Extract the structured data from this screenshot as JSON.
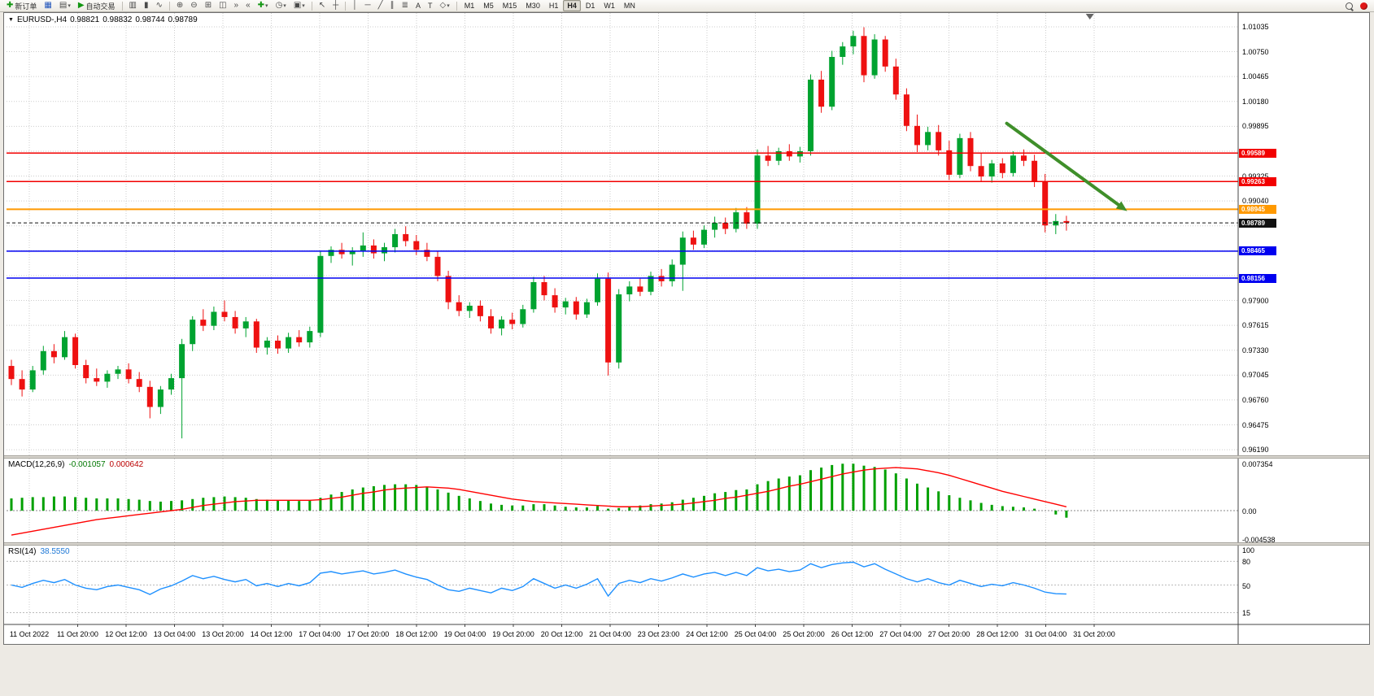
{
  "window": {
    "symbol_period": "EURUSD-,H4",
    "ohlc": {
      "open": "0.98821",
      "high": "0.98832",
      "low": "0.98744",
      "close": "0.98789"
    }
  },
  "toolbar": {
    "new_order": "新订单",
    "autotrading": "自动交易",
    "text_tool": "A",
    "label_tool": "T",
    "timeframes": [
      "M1",
      "M5",
      "M15",
      "M30",
      "H1",
      "H4",
      "D1",
      "W1",
      "MN"
    ],
    "active_timeframe": "H4"
  },
  "icons": {
    "new-order": "✚",
    "chart-window": "▦",
    "profiles": "▤",
    "autotrading-play": "▶",
    "bars-chart": "▥",
    "candles-chart": "▮",
    "line-chart": "∿",
    "zoom-in": "⊕",
    "zoom-out": "⊖",
    "tile-windows": "⊞",
    "cascade-windows": "◫",
    "auto-scroll": "»",
    "chart-shift": "«",
    "indicators-add": "✚",
    "periods": "◷",
    "templates": "▣",
    "cursor": "↖",
    "crosshair": "┼",
    "vline": "│",
    "hline": "─",
    "trendline": "╱",
    "channel": "∥",
    "fibonacci": "≣",
    "shapes": "◇",
    "dropdown": "▾",
    "menu-triangle": "▼"
  },
  "chart_data": [
    {
      "type": "candlestick",
      "title": "EURUSD-,H4",
      "symbol": "EURUSD-",
      "timeframe": "H4",
      "ohlc_display": {
        "open": "0.98821",
        "high": "0.98832",
        "low": "0.98744",
        "close": "0.98789"
      },
      "y_range": [
        0.96126,
        1.01193
      ],
      "y_axis_labels": [
        "1.01035",
        "1.00750",
        "1.00465",
        "1.00180",
        "0.99895",
        "0.99325",
        "0.99040",
        "0.97900",
        "0.97615",
        "0.97330",
        "0.97045",
        "0.96760",
        "0.96475",
        "0.96190"
      ],
      "x_labels": [
        "11 Oct 2022",
        "11 Oct 20:00",
        "12 Oct 12:00",
        "13 Oct 04:00",
        "13 Oct 20:00",
        "14 Oct 12:00",
        "17 Oct 04:00",
        "17 Oct 20:00",
        "18 Oct 12:00",
        "19 Oct 04:00",
        "19 Oct 20:00",
        "20 Oct 12:00",
        "21 Oct 04:00",
        "23 Oct 23:00",
        "24 Oct 12:00",
        "25 Oct 04:00",
        "25 Oct 20:00",
        "26 Oct 12:00",
        "27 Oct 04:00",
        "27 Oct 20:00",
        "28 Oct 12:00",
        "31 Oct 04:00",
        "31 Oct 20:00"
      ],
      "colors": {
        "up": "#00A330",
        "down": "#EE1111",
        "grid": "#CDCDCD",
        "background": "#FFFFFF"
      },
      "horizontal_lines": [
        {
          "price": "0.99589",
          "value": 0.99589,
          "color": "#F20000",
          "width": 1.5
        },
        {
          "price": "0.99263",
          "value": 0.99263,
          "color": "#F20000",
          "width": 1.5
        },
        {
          "price": "0.98945",
          "value": 0.98945,
          "color": "#FF9900",
          "width": 2
        },
        {
          "price": "0.98465",
          "value": 0.98465,
          "color": "#0000F0",
          "width": 1.5
        },
        {
          "price": "0.98156",
          "value": 0.98156,
          "color": "#0000F0",
          "width": 1.5
        }
      ],
      "bid_line": {
        "price": "0.98789",
        "value": 0.98789,
        "color": "#111111"
      },
      "trend_arrow": {
        "from_bar": 93.4,
        "from_price": 0.99929,
        "to_bar": 104.7,
        "to_price": 0.98924,
        "color": "#3F8F2A",
        "width": 4
      },
      "shift_marker_bar": 101.2,
      "candles": [
        [
          0.9715,
          0.9722,
          0.9693,
          0.97
        ],
        [
          0.97,
          0.971,
          0.968,
          0.9688
        ],
        [
          0.9688,
          0.9715,
          0.9685,
          0.971
        ],
        [
          0.971,
          0.9738,
          0.9705,
          0.9732
        ],
        [
          0.9732,
          0.974,
          0.9718,
          0.9725
        ],
        [
          0.9725,
          0.9755,
          0.9722,
          0.9748
        ],
        [
          0.9748,
          0.9752,
          0.9712,
          0.9716
        ],
        [
          0.9716,
          0.9722,
          0.9695,
          0.9701
        ],
        [
          0.9701,
          0.9712,
          0.9692,
          0.9697
        ],
        [
          0.9697,
          0.971,
          0.969,
          0.9706
        ],
        [
          0.9706,
          0.9715,
          0.97,
          0.9711
        ],
        [
          0.9711,
          0.9718,
          0.9695,
          0.97
        ],
        [
          0.97,
          0.9708,
          0.9685,
          0.9691
        ],
        [
          0.9691,
          0.9698,
          0.9655,
          0.9668
        ],
        [
          0.9668,
          0.9692,
          0.966,
          0.9688
        ],
        [
          0.9688,
          0.9706,
          0.9682,
          0.9701
        ],
        [
          0.9701,
          0.9746,
          0.9632,
          0.974
        ],
        [
          0.974,
          0.9772,
          0.9732,
          0.9768
        ],
        [
          0.9768,
          0.978,
          0.9755,
          0.9761
        ],
        [
          0.9761,
          0.9783,
          0.9756,
          0.9777
        ],
        [
          0.9777,
          0.979,
          0.9766,
          0.9771
        ],
        [
          0.9771,
          0.9778,
          0.9752,
          0.9758
        ],
        [
          0.9758,
          0.9771,
          0.9748,
          0.9766
        ],
        [
          0.9766,
          0.9769,
          0.973,
          0.9736
        ],
        [
          0.9736,
          0.9748,
          0.9728,
          0.9744
        ],
        [
          0.9744,
          0.975,
          0.9729,
          0.9735
        ],
        [
          0.9735,
          0.9753,
          0.973,
          0.9748
        ],
        [
          0.9748,
          0.9756,
          0.9737,
          0.9742
        ],
        [
          0.9742,
          0.976,
          0.9736,
          0.9755
        ],
        [
          0.9753,
          0.9846,
          0.9748,
          0.9841
        ],
        [
          0.9841,
          0.9852,
          0.9833,
          0.9848
        ],
        [
          0.9848,
          0.9856,
          0.9838,
          0.9843
        ],
        [
          0.9843,
          0.9851,
          0.983,
          0.9847
        ],
        [
          0.9847,
          0.9868,
          0.984,
          0.9853
        ],
        [
          0.9853,
          0.986,
          0.9838,
          0.9844
        ],
        [
          0.9844,
          0.9856,
          0.9835,
          0.9851
        ],
        [
          0.9851,
          0.9872,
          0.9845,
          0.9866
        ],
        [
          0.9866,
          0.9875,
          0.9852,
          0.9858
        ],
        [
          0.9858,
          0.9865,
          0.9842,
          0.9848
        ],
        [
          0.9848,
          0.9856,
          0.9835,
          0.984
        ],
        [
          0.984,
          0.9846,
          0.9812,
          0.9818
        ],
        [
          0.9818,
          0.9824,
          0.978,
          0.9788
        ],
        [
          0.9788,
          0.9796,
          0.9772,
          0.9778
        ],
        [
          0.9778,
          0.9788,
          0.977,
          0.9784
        ],
        [
          0.9784,
          0.979,
          0.9766,
          0.9772
        ],
        [
          0.9772,
          0.978,
          0.9752,
          0.9758
        ],
        [
          0.9758,
          0.9772,
          0.975,
          0.9768
        ],
        [
          0.9768,
          0.9776,
          0.9757,
          0.9763
        ],
        [
          0.9763,
          0.9785,
          0.9759,
          0.978
        ],
        [
          0.978,
          0.9817,
          0.9776,
          0.9811
        ],
        [
          0.9811,
          0.9818,
          0.979,
          0.9796
        ],
        [
          0.9796,
          0.9804,
          0.9776,
          0.9782
        ],
        [
          0.9782,
          0.9793,
          0.9774,
          0.9789
        ],
        [
          0.9789,
          0.9794,
          0.9768,
          0.9774
        ],
        [
          0.9774,
          0.9792,
          0.977,
          0.9788
        ],
        [
          0.9788,
          0.9821,
          0.9784,
          0.9815
        ],
        [
          0.9815,
          0.9822,
          0.9704,
          0.9719
        ],
        [
          0.9719,
          0.9803,
          0.9712,
          0.9797
        ],
        [
          0.9797,
          0.9812,
          0.9789,
          0.9806
        ],
        [
          0.9806,
          0.9815,
          0.9795,
          0.98
        ],
        [
          0.98,
          0.9823,
          0.9796,
          0.9818
        ],
        [
          0.9818,
          0.9826,
          0.9806,
          0.9812
        ],
        [
          0.9812,
          0.9837,
          0.9806,
          0.9831
        ],
        [
          0.9831,
          0.9869,
          0.9801,
          0.9862
        ],
        [
          0.9862,
          0.987,
          0.9848,
          0.9854
        ],
        [
          0.9854,
          0.9876,
          0.985,
          0.9871
        ],
        [
          0.9871,
          0.9886,
          0.9862,
          0.9879
        ],
        [
          0.9879,
          0.9885,
          0.9866,
          0.9872
        ],
        [
          0.9872,
          0.9896,
          0.9868,
          0.9891
        ],
        [
          0.9891,
          0.9897,
          0.9872,
          0.9878
        ],
        [
          0.9878,
          0.9963,
          0.9872,
          0.9956
        ],
        [
          0.9956,
          0.9967,
          0.9944,
          0.995
        ],
        [
          0.995,
          0.9965,
          0.9945,
          0.9961
        ],
        [
          0.9961,
          0.9969,
          0.995,
          0.9955
        ],
        [
          0.9955,
          0.9966,
          0.9948,
          0.9961
        ],
        [
          0.9961,
          1.0049,
          0.9956,
          1.0043
        ],
        [
          1.0043,
          1.0053,
          1.0005,
          1.0012
        ],
        [
          1.0012,
          1.0076,
          1.0008,
          1.0069
        ],
        [
          1.0069,
          1.0086,
          1.006,
          1.0081
        ],
        [
          1.0081,
          1.0099,
          1.0072,
          1.0093
        ],
        [
          1.0093,
          1.0103,
          1.004,
          1.0048
        ],
        [
          1.0048,
          1.0095,
          1.0044,
          1.0089
        ],
        [
          1.0089,
          1.0093,
          1.0052,
          1.0058
        ],
        [
          1.0058,
          1.0067,
          1.002,
          1.0026
        ],
        [
          1.0026,
          1.0033,
          0.9984,
          0.999
        ],
        [
          0.999,
          1.0003,
          0.996,
          0.9968
        ],
        [
          0.9968,
          0.9989,
          0.9962,
          0.9983
        ],
        [
          0.9983,
          0.9991,
          0.9956,
          0.9962
        ],
        [
          0.9962,
          0.9973,
          0.9928,
          0.9934
        ],
        [
          0.9934,
          0.9981,
          0.993,
          0.9976
        ],
        [
          0.9976,
          0.9983,
          0.9938,
          0.9944
        ],
        [
          0.9944,
          0.9959,
          0.9926,
          0.9932
        ],
        [
          0.9932,
          0.9951,
          0.9925,
          0.9947
        ],
        [
          0.9947,
          0.9953,
          0.993,
          0.9936
        ],
        [
          0.9936,
          0.9961,
          0.9932,
          0.9956
        ],
        [
          0.9956,
          0.9963,
          0.9944,
          0.995
        ],
        [
          0.995,
          0.9957,
          0.992,
          0.9926
        ],
        [
          0.9926,
          0.9935,
          0.9868,
          0.9876
        ],
        [
          0.9876,
          0.9889,
          0.9866,
          0.9881
        ],
        [
          0.9881,
          0.9887,
          0.987,
          0.98789
        ]
      ]
    },
    {
      "type": "macd-histogram",
      "label": "MACD(12,26,9)",
      "values_display": [
        "-0.001057",
        "0.000642"
      ],
      "axis_labels": [
        "0.007354",
        "0.00",
        "-0.004538"
      ],
      "axis_values": [
        0.007354,
        0,
        -0.004538
      ],
      "colors": {
        "histogram": "#00A000",
        "signal": "#FF0000"
      },
      "histogram": [
        0.0019,
        0.002,
        0.0021,
        0.0021,
        0.0022,
        0.0022,
        0.0021,
        0.002,
        0.0019,
        0.0019,
        0.0019,
        0.0018,
        0.0017,
        0.0015,
        0.0014,
        0.0015,
        0.0016,
        0.0018,
        0.002,
        0.0021,
        0.0022,
        0.0021,
        0.002,
        0.0018,
        0.0017,
        0.0016,
        0.0016,
        0.0015,
        0.0016,
        0.002,
        0.0025,
        0.0029,
        0.0033,
        0.0036,
        0.0038,
        0.004,
        0.0041,
        0.0041,
        0.004,
        0.0037,
        0.0033,
        0.0028,
        0.0023,
        0.0019,
        0.0015,
        0.0011,
        0.0009,
        0.0008,
        0.0008,
        0.001,
        0.001,
        0.0008,
        0.0006,
        0.0005,
        0.0005,
        0.0007,
        0.0003,
        0.0004,
        0.0006,
        0.0008,
        0.001,
        0.0011,
        0.0013,
        0.0017,
        0.002,
        0.0023,
        0.0027,
        0.0029,
        0.0032,
        0.0033,
        0.0041,
        0.0046,
        0.005,
        0.0053,
        0.0055,
        0.0063,
        0.0067,
        0.0071,
        0.0073,
        0.0073,
        0.007,
        0.0068,
        0.0064,
        0.0058,
        0.005,
        0.0042,
        0.0036,
        0.003,
        0.0024,
        0.002,
        0.0016,
        0.0012,
        0.0009,
        0.0007,
        0.0006,
        0.0005,
        0.0003,
        0.0,
        -0.0006,
        -0.0011
      ],
      "signal": [
        -0.0038,
        -0.0035,
        -0.0032,
        -0.0029,
        -0.0026,
        -0.0023,
        -0.002,
        -0.0017,
        -0.0014,
        -0.0012,
        -0.001,
        -0.0008,
        -0.0006,
        -0.0004,
        -0.0002,
        0.0,
        0.0002,
        0.0005,
        0.0008,
        0.001,
        0.0012,
        0.0014,
        0.0015,
        0.0016,
        0.0016,
        0.0016,
        0.0016,
        0.0016,
        0.0016,
        0.0017,
        0.0019,
        0.0021,
        0.0024,
        0.0027,
        0.0029,
        0.0032,
        0.0034,
        0.0035,
        0.0036,
        0.0037,
        0.0036,
        0.0035,
        0.0033,
        0.003,
        0.0027,
        0.0024,
        0.0021,
        0.0018,
        0.0016,
        0.0014,
        0.0013,
        0.0012,
        0.0011,
        0.001,
        0.0009,
        0.0008,
        0.0007,
        0.0006,
        0.0006,
        0.0006,
        0.0007,
        0.0008,
        0.0009,
        0.001,
        0.0012,
        0.0014,
        0.0016,
        0.0019,
        0.0021,
        0.0024,
        0.0027,
        0.003,
        0.0034,
        0.0038,
        0.0041,
        0.0045,
        0.0049,
        0.0053,
        0.0057,
        0.006,
        0.0063,
        0.0065,
        0.0066,
        0.0067,
        0.0066,
        0.0065,
        0.0062,
        0.0059,
        0.0055,
        0.005,
        0.0045,
        0.004,
        0.0035,
        0.003,
        0.0026,
        0.0022,
        0.0018,
        0.0014,
        0.001,
        0.0006
      ]
    },
    {
      "type": "line",
      "label": "RSI(14)",
      "value_display": "38.5550",
      "levels": [
        80,
        50,
        15
      ],
      "axis_labels": [
        "100",
        "80",
        "50",
        "15"
      ],
      "axis_values": [
        100,
        80,
        50,
        15
      ],
      "color": "#1E90FF",
      "y_range": [
        0,
        100
      ],
      "series": [
        50,
        47,
        52,
        56,
        53,
        57,
        50,
        46,
        44,
        48,
        50,
        47,
        44,
        38,
        45,
        49,
        55,
        62,
        58,
        61,
        57,
        54,
        57,
        49,
        52,
        48,
        52,
        49,
        53,
        65,
        67,
        64,
        66,
        68,
        64,
        66,
        69,
        64,
        60,
        57,
        50,
        44,
        42,
        46,
        43,
        40,
        46,
        43,
        48,
        58,
        52,
        46,
        50,
        46,
        51,
        58,
        36,
        52,
        56,
        53,
        58,
        55,
        59,
        64,
        60,
        64,
        66,
        62,
        66,
        62,
        72,
        68,
        70,
        67,
        69,
        77,
        72,
        76,
        78,
        79,
        73,
        77,
        70,
        64,
        58,
        54,
        58,
        53,
        50,
        56,
        52,
        48,
        51,
        49,
        53,
        50,
        46,
        41,
        39,
        38.6
      ]
    }
  ]
}
